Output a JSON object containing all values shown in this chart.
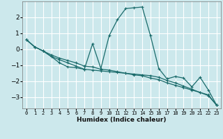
{
  "xlabel": "Humidex (Indice chaleur)",
  "background_color": "#cce8ec",
  "grid_color": "#ffffff",
  "line_color": "#1a6b6b",
  "xlim": [
    -0.5,
    23.5
  ],
  "ylim": [
    -3.7,
    3.0
  ],
  "yticks": [
    -3,
    -2,
    -1,
    0,
    1,
    2
  ],
  "xticks": [
    0,
    1,
    2,
    3,
    4,
    5,
    6,
    7,
    8,
    9,
    10,
    11,
    12,
    13,
    14,
    15,
    16,
    17,
    18,
    19,
    20,
    21,
    22,
    23
  ],
  "series": [
    [
      0.6,
      0.15,
      -0.1,
      -0.45,
      -0.85,
      -1.1,
      -1.15,
      -1.25,
      0.35,
      -1.2,
      0.85,
      1.85,
      2.55,
      2.6,
      2.65,
      0.85,
      -1.2,
      -1.85,
      -1.7,
      -1.8,
      -2.35,
      -1.75,
      -2.55,
      -3.5
    ],
    [
      0.6,
      0.15,
      -0.1,
      -0.35,
      -0.55,
      -0.7,
      -0.85,
      -1.05,
      -1.1,
      -1.25,
      -1.3,
      -1.4,
      -1.5,
      -1.6,
      -1.65,
      -1.8,
      -1.9,
      -2.1,
      -2.25,
      -2.4,
      -2.55,
      -2.7,
      -2.85,
      -3.5
    ],
    [
      0.6,
      0.15,
      -0.1,
      -0.45,
      -0.65,
      -0.85,
      -1.05,
      -1.25,
      -1.3,
      -1.35,
      -1.4,
      -1.45,
      -1.5,
      -1.55,
      -1.6,
      -1.65,
      -1.75,
      -1.95,
      -2.1,
      -2.3,
      -2.5,
      -2.7,
      -2.9,
      -3.5
    ]
  ]
}
